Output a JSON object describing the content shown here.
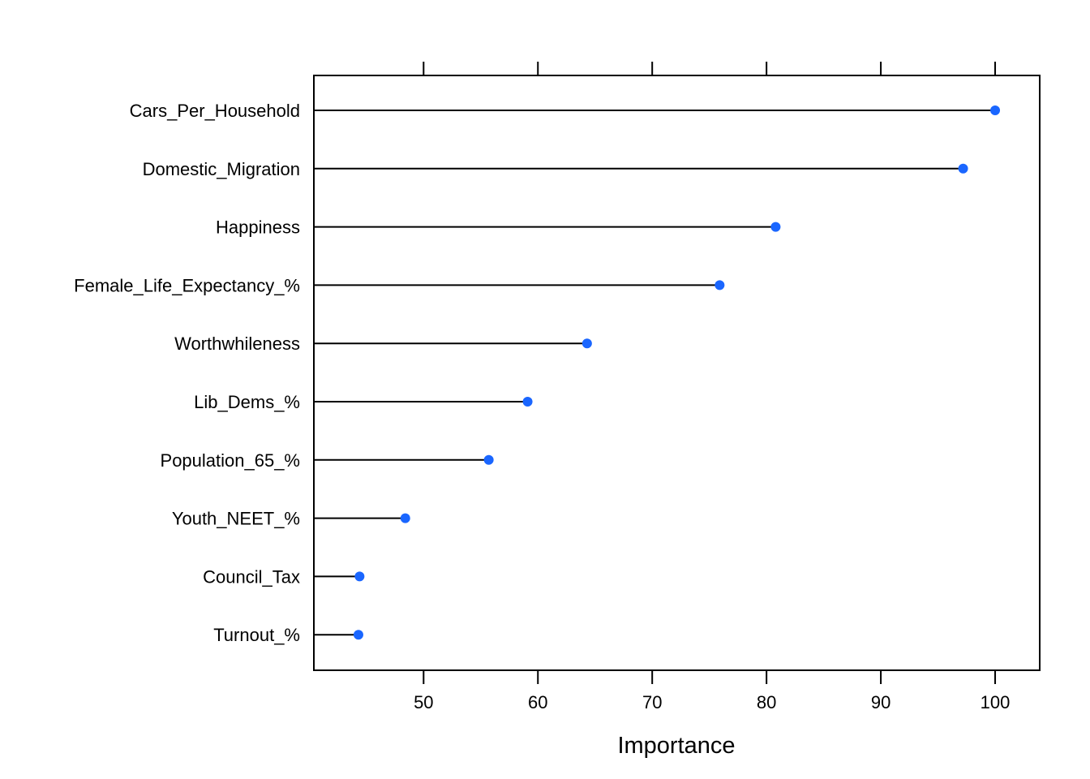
{
  "chart_data": {
    "type": "dotplot",
    "xlabel": "Importance",
    "xlim": [
      40.4,
      103.9
    ],
    "xticks": [
      50,
      60,
      70,
      80,
      90,
      100
    ],
    "baseline": 40.4,
    "point_color": "#1a66ff",
    "line_color": "#000000",
    "grid": false,
    "categories": [
      "Cars_Per_Household",
      "Domestic_Migration",
      "Happiness",
      "Female_Life_Expectancy_%",
      "Worthwhileness",
      "Lib_Dems_%",
      "Population_65_%",
      "Youth_NEET_%",
      "Council_Tax",
      "Turnout_%"
    ],
    "values": [
      100.0,
      97.2,
      80.8,
      75.9,
      64.3,
      59.1,
      55.7,
      48.4,
      44.4,
      44.3
    ]
  }
}
